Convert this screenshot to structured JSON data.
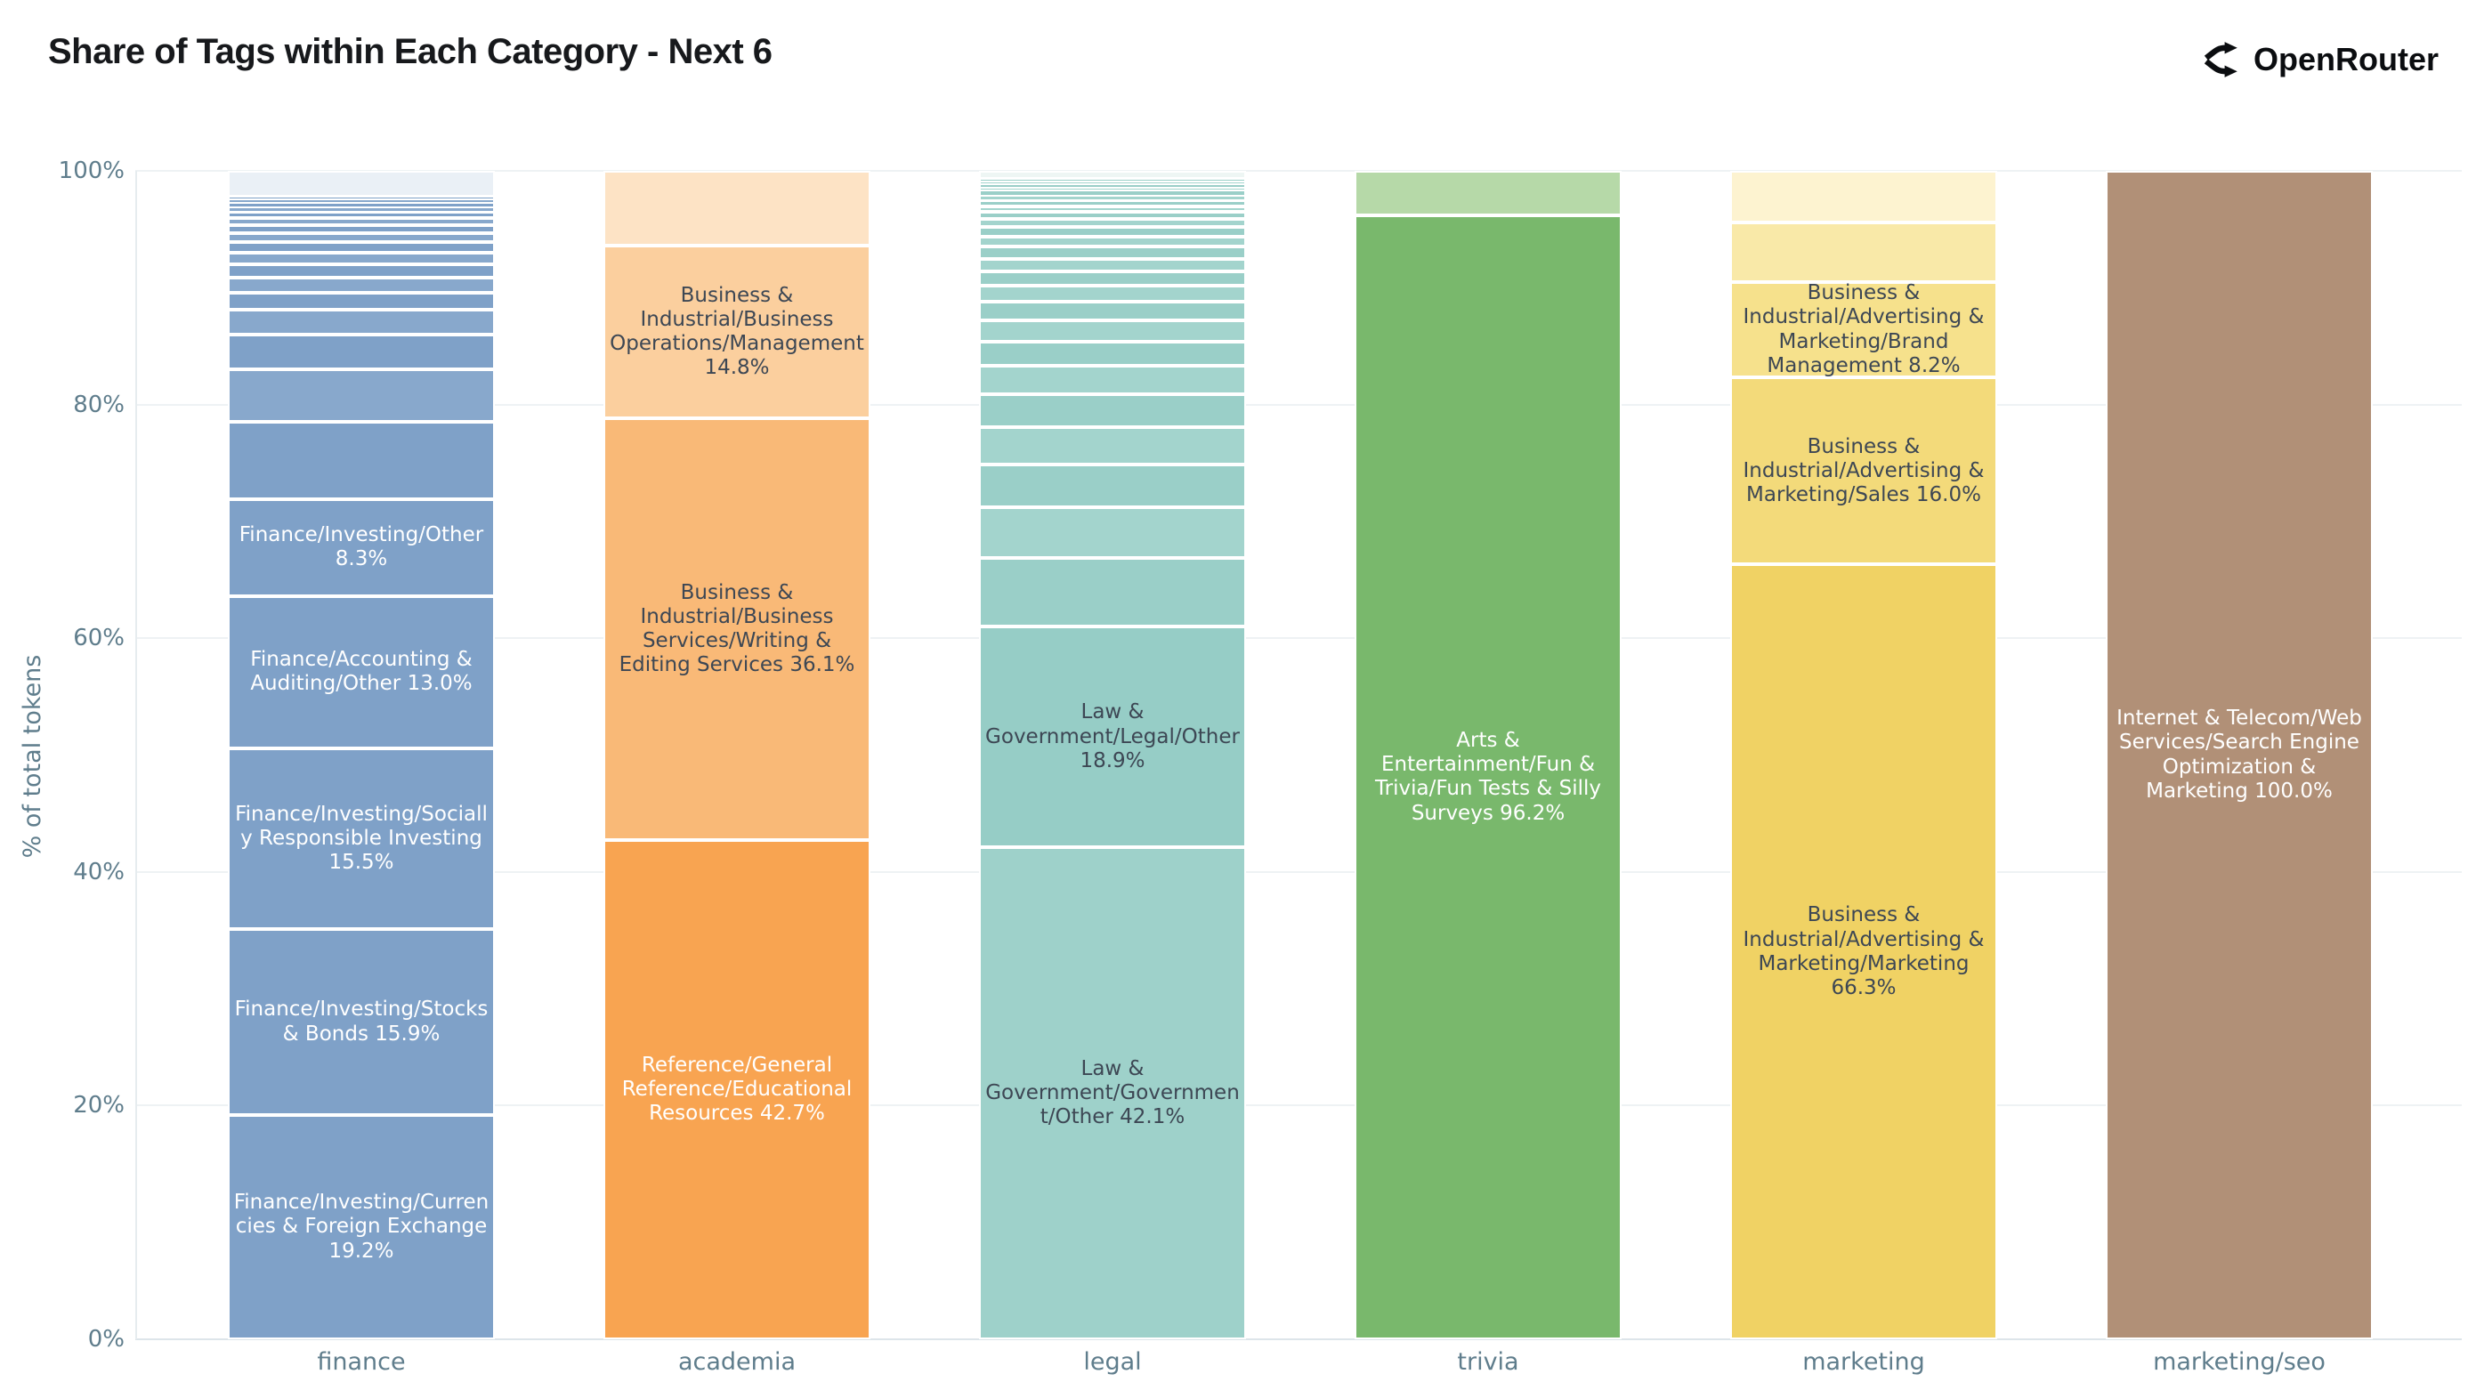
{
  "title": "Share of Tags within Each Category - Next 6",
  "brand": {
    "name": "OpenRouter"
  },
  "y_axis": {
    "title": "% of total tokens",
    "ticks": [
      "0%",
      "20%",
      "40%",
      "60%",
      "80%",
      "100%"
    ]
  },
  "chart_data": {
    "type": "bar",
    "stacked": true,
    "normalized": "percent",
    "ylim": [
      0,
      100
    ],
    "grid": true,
    "legend": "none",
    "categories": [
      "finance",
      "academia",
      "legal",
      "trivia",
      "marketing",
      "marketing/seo"
    ],
    "bars": [
      {
        "category": "finance",
        "segments": [
          {
            "label": "Finance/Investing/Currencies & Foreign Exchange",
            "value": 19.2,
            "color": "#7fa1c8",
            "text": "#ffffff",
            "labeled": true
          },
          {
            "label": "Finance/Investing/Stocks & Bonds",
            "value": 15.9,
            "color": "#7fa1c8",
            "text": "#ffffff",
            "labeled": true
          },
          {
            "label": "Finance/Investing/Socially Responsible Investing",
            "value": 15.5,
            "color": "#7fa1c8",
            "text": "#ffffff",
            "labeled": true
          },
          {
            "label": "Finance/Accounting & Auditing/Other",
            "value": 13.0,
            "color": "#7fa1c8",
            "text": "#ffffff",
            "labeled": true
          },
          {
            "label": "Finance/Investing/Other",
            "value": 8.3,
            "color": "#7fa1c8",
            "text": "#ffffff",
            "labeled": true
          },
          {
            "label": "",
            "value": 6.6,
            "color": "#7fa1c8",
            "labeled": false
          },
          {
            "label": "",
            "value": 4.5,
            "color": "#88a8cc",
            "labeled": false
          },
          {
            "label": "",
            "value": 3.0,
            "color": "#7fa1c8",
            "labeled": false
          },
          {
            "label": "",
            "value": 2.1,
            "color": "#88a8cc",
            "labeled": false
          },
          {
            "label": "",
            "value": 1.5,
            "color": "#7fa1c8",
            "labeled": false
          },
          {
            "label": "",
            "value": 1.3,
            "color": "#88a8cc",
            "labeled": false
          },
          {
            "label": "",
            "value": 1.1,
            "color": "#7fa1c8",
            "labeled": false
          },
          {
            "label": "",
            "value": 1.0,
            "color": "#88a8cc",
            "labeled": false
          },
          {
            "label": "",
            "value": 0.9,
            "color": "#7fa1c8",
            "labeled": false
          },
          {
            "label": "",
            "value": 0.8,
            "color": "#88a8cc",
            "labeled": false
          },
          {
            "label": "",
            "value": 0.7,
            "color": "#7fa1c8",
            "labeled": false
          },
          {
            "label": "",
            "value": 0.6,
            "color": "#88a8cc",
            "labeled": false
          },
          {
            "label": "",
            "value": 0.5,
            "color": "#7fa1c8",
            "labeled": false
          },
          {
            "label": "",
            "value": 0.4,
            "color": "#88a8cc",
            "labeled": false
          },
          {
            "label": "",
            "value": 0.35,
            "color": "#7fa1c8",
            "labeled": false
          },
          {
            "label": "",
            "value": 0.3,
            "color": "#88a8cc",
            "labeled": false
          },
          {
            "label": "",
            "value": 0.25,
            "color": "#7fa1c8",
            "labeled": false
          },
          {
            "label": "",
            "value": 2.2,
            "color": "#eaf0f6",
            "labeled": false
          }
        ]
      },
      {
        "category": "academia",
        "segments": [
          {
            "label": "Reference/General Reference/Educational Resources",
            "value": 42.7,
            "color": "#f8a451",
            "text": "#ffffff",
            "labeled": true
          },
          {
            "label": "Business & Industrial/Business Services/Writing & Editing Services",
            "value": 36.1,
            "color": "#f9b977",
            "text": "#3d4754",
            "labeled": true
          },
          {
            "label": "Business & Industrial/Business Operations/Management",
            "value": 14.8,
            "color": "#fbcf9e",
            "text": "#3d4754",
            "labeled": true
          },
          {
            "label": "",
            "value": 6.4,
            "color": "#fde3c5",
            "labeled": false
          }
        ]
      },
      {
        "category": "legal",
        "segments": [
          {
            "label": "Law & Government/Government/Other",
            "value": 42.1,
            "color": "#9ed1ca",
            "text": "#3d4754",
            "labeled": true
          },
          {
            "label": "Law & Government/Legal/Other",
            "value": 18.9,
            "color": "#96cdc6",
            "text": "#3d4754",
            "labeled": true
          },
          {
            "label": "",
            "value": 5.9,
            "color": "#9acfc8",
            "labeled": false
          },
          {
            "label": "",
            "value": 4.3,
            "color": "#a3d4cd",
            "labeled": false
          },
          {
            "label": "",
            "value": 3.7,
            "color": "#9acfc8",
            "labeled": false
          },
          {
            "label": "",
            "value": 3.2,
            "color": "#a3d4cd",
            "labeled": false
          },
          {
            "label": "",
            "value": 2.8,
            "color": "#9acfc8",
            "labeled": false
          },
          {
            "label": "",
            "value": 2.4,
            "color": "#a3d4cd",
            "labeled": false
          },
          {
            "label": "",
            "value": 2.1,
            "color": "#9acfc8",
            "labeled": false
          },
          {
            "label": "",
            "value": 1.8,
            "color": "#a3d4cd",
            "labeled": false
          },
          {
            "label": "",
            "value": 1.6,
            "color": "#9acfc8",
            "labeled": false
          },
          {
            "label": "",
            "value": 1.4,
            "color": "#a3d4cd",
            "labeled": false
          },
          {
            "label": "",
            "value": 1.2,
            "color": "#9acfc8",
            "labeled": false
          },
          {
            "label": "",
            "value": 1.1,
            "color": "#a3d4cd",
            "labeled": false
          },
          {
            "label": "",
            "value": 1.0,
            "color": "#9acfc8",
            "labeled": false
          },
          {
            "label": "",
            "value": 0.9,
            "color": "#a3d4cd",
            "labeled": false
          },
          {
            "label": "",
            "value": 0.8,
            "color": "#9acfc8",
            "labeled": false
          },
          {
            "label": "",
            "value": 0.7,
            "color": "#a3d4cd",
            "labeled": false
          },
          {
            "label": "",
            "value": 0.6,
            "color": "#9acfc8",
            "labeled": false
          },
          {
            "label": "",
            "value": 0.5,
            "color": "#a3d4cd",
            "labeled": false
          },
          {
            "label": "",
            "value": 0.5,
            "color": "#9acfc8",
            "labeled": false
          },
          {
            "label": "",
            "value": 0.4,
            "color": "#a3d4cd",
            "labeled": false
          },
          {
            "label": "",
            "value": 0.4,
            "color": "#9acfc8",
            "labeled": false
          },
          {
            "label": "",
            "value": 0.3,
            "color": "#a3d4cd",
            "labeled": false
          },
          {
            "label": "",
            "value": 0.3,
            "color": "#9acfc8",
            "labeled": false
          },
          {
            "label": "",
            "value": 0.2,
            "color": "#a3d4cd",
            "labeled": false
          },
          {
            "label": "",
            "value": 0.2,
            "color": "#9acfc8",
            "labeled": false
          },
          {
            "label": "",
            "value": 0.7,
            "color": "#eef6f4",
            "labeled": false
          }
        ]
      },
      {
        "category": "trivia",
        "segments": [
          {
            "label": "Arts & Entertainment/Fun & Trivia/Fun Tests & Silly Surveys",
            "value": 96.2,
            "color": "#79b86c",
            "text": "#ffffff",
            "labeled": true
          },
          {
            "label": "",
            "value": 3.8,
            "color": "#b6d9a8",
            "labeled": false
          }
        ]
      },
      {
        "category": "marketing",
        "segments": [
          {
            "label": "Business & Industrial/Advertising & Marketing/Marketing",
            "value": 66.3,
            "color": "#f0d264",
            "text": "#3d4754",
            "labeled": true
          },
          {
            "label": "Business & Industrial/Advertising & Marketing/Sales",
            "value": 16.0,
            "color": "#f3da7a",
            "text": "#3d4754",
            "labeled": true
          },
          {
            "label": "Business & Industrial/Advertising & Marketing/Brand Management",
            "value": 8.2,
            "color": "#f6e18c",
            "text": "#3d4754",
            "labeled": true
          },
          {
            "label": "",
            "value": 5.1,
            "color": "#f9e9a8",
            "labeled": false
          },
          {
            "label": "",
            "value": 4.4,
            "color": "#fdf3d0",
            "labeled": false
          }
        ]
      },
      {
        "category": "marketing/seo",
        "segments": [
          {
            "label": "Internet & Telecom/Web Services/Search Engine Optimization & Marketing",
            "value": 100.0,
            "color": "#b19077",
            "text": "#ffffff",
            "labeled": true
          }
        ]
      }
    ]
  }
}
